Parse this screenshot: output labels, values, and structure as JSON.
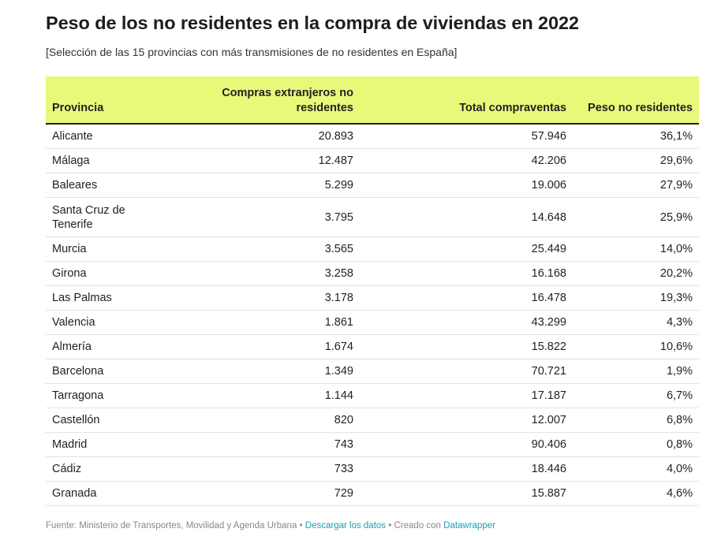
{
  "chart_data": {
    "type": "table",
    "title": "Peso de los no residentes en la compra de viviendas en 2022",
    "subtitle": "[Selección de las 15 provincias con más transmisiones de no residentes en España]",
    "columns": [
      "Provincia",
      "Compras extranjeros no residentes",
      "Total compraventas",
      "Peso no residentes"
    ],
    "rows": [
      [
        "Alicante",
        "20.893",
        "57.946",
        "36,1%"
      ],
      [
        "Málaga",
        "12.487",
        "42.206",
        "29,6%"
      ],
      [
        "Baleares",
        "5.299",
        "19.006",
        "27,9%"
      ],
      [
        "Santa Cruz de Tenerife",
        "3.795",
        "14.648",
        "25,9%"
      ],
      [
        "Murcia",
        "3.565",
        "25.449",
        "14,0%"
      ],
      [
        "Girona",
        "3.258",
        "16.168",
        "20,2%"
      ],
      [
        "Las Palmas",
        "3.178",
        "16.478",
        "19,3%"
      ],
      [
        "Valencia",
        "1.861",
        "43.299",
        "4,3%"
      ],
      [
        "Almería",
        "1.674",
        "15.822",
        "10,6%"
      ],
      [
        "Barcelona",
        "1.349",
        "70.721",
        "1,9%"
      ],
      [
        "Tarragona",
        "1.144",
        "17.187",
        "6,7%"
      ],
      [
        "Castellón",
        "820",
        "12.007",
        "6,8%"
      ],
      [
        "Madrid",
        "743",
        "90.406",
        "0,8%"
      ],
      [
        "Cádiz",
        "733",
        "18.446",
        "4,0%"
      ],
      [
        "Granada",
        "729",
        "15.887",
        "4,6%"
      ]
    ],
    "header_color": "#e8f97a"
  },
  "footer": {
    "source": "Fuente: Ministerio de Transportes, Movilidad y Agenda Urbana",
    "sep1": " • ",
    "download": "Descargar los datos",
    "sep2": " • ",
    "created": "Creado con ",
    "tool": "Datawrapper"
  },
  "colors": {
    "link": "#1a9fb0",
    "text": "#222222",
    "muted": "#888888"
  }
}
